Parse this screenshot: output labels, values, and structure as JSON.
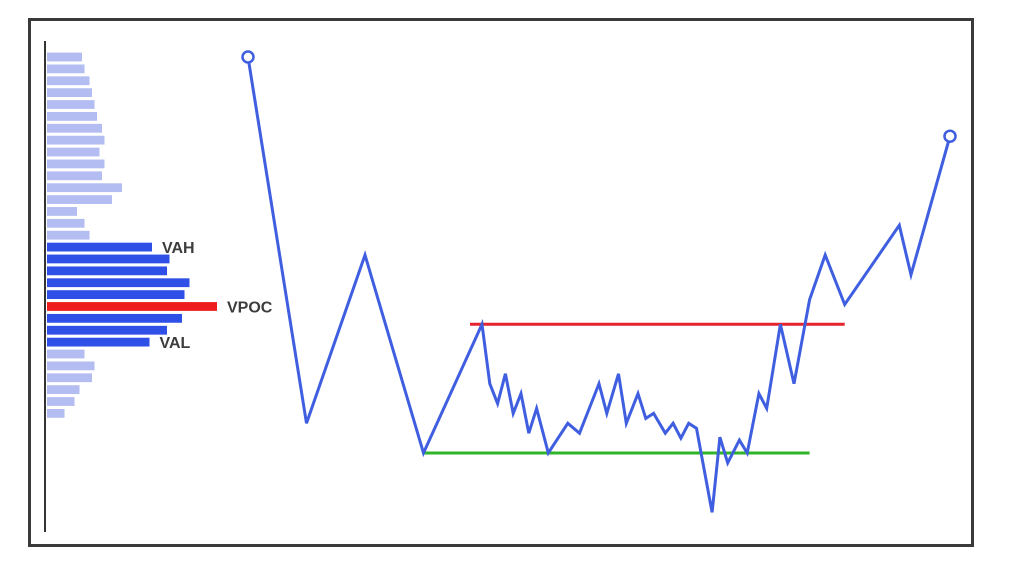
{
  "chart_data": {
    "type": "line",
    "title": "",
    "xlabel": "",
    "ylabel": "",
    "grid": false,
    "legend": "none",
    "colors": {
      "price_line": "#3f5fe0",
      "value_area_bar": "#2f50e6",
      "outside_bar": "#b3bdf1",
      "poc_bar": "#ee1c1c",
      "resistance_line": "#e5242d",
      "support_line": "#2fb52a",
      "axis": "#333333"
    },
    "price_series": [
      [
        0,
        80
      ],
      [
        3,
        43
      ],
      [
        6,
        60
      ],
      [
        9,
        40
      ],
      [
        12,
        53
      ],
      [
        12.4,
        47
      ],
      [
        12.8,
        45
      ],
      [
        13.2,
        48
      ],
      [
        13.6,
        44
      ],
      [
        14.0,
        46
      ],
      [
        14.4,
        42
      ],
      [
        14.8,
        44.5
      ],
      [
        15.4,
        40
      ],
      [
        16.4,
        43
      ],
      [
        17.0,
        42
      ],
      [
        17.6,
        45
      ],
      [
        18.0,
        47
      ],
      [
        18.4,
        44
      ],
      [
        19.0,
        48
      ],
      [
        19.4,
        43
      ],
      [
        20.0,
        46
      ],
      [
        20.4,
        43.5
      ],
      [
        20.8,
        44
      ],
      [
        21.4,
        42
      ],
      [
        21.8,
        43
      ],
      [
        22.2,
        41.5
      ],
      [
        22.6,
        43
      ],
      [
        23.0,
        42.5
      ],
      [
        23.8,
        34
      ],
      [
        24.2,
        41.6
      ],
      [
        24.6,
        39
      ],
      [
        25.2,
        41.3
      ],
      [
        25.6,
        40
      ],
      [
        26.2,
        46
      ],
      [
        26.6,
        44.5
      ],
      [
        27.3,
        53
      ],
      [
        28.0,
        47
      ],
      [
        28.8,
        55.5
      ],
      [
        29.6,
        60
      ],
      [
        30.6,
        55
      ],
      [
        33.4,
        63
      ],
      [
        34.0,
        58
      ],
      [
        36.0,
        72
      ]
    ],
    "levels": {
      "resistance": 53,
      "support": 40
    },
    "volume_profile": {
      "levels": [
        {
          "price": 80.0,
          "volume": 14
        },
        {
          "price": 78.8,
          "volume": 15
        },
        {
          "price": 77.6,
          "volume": 17
        },
        {
          "price": 76.4,
          "volume": 18
        },
        {
          "price": 75.2,
          "volume": 19
        },
        {
          "price": 74.0,
          "volume": 20
        },
        {
          "price": 72.8,
          "volume": 22
        },
        {
          "price": 71.6,
          "volume": 23
        },
        {
          "price": 70.4,
          "volume": 21
        },
        {
          "price": 69.2,
          "volume": 23
        },
        {
          "price": 68.0,
          "volume": 22
        },
        {
          "price": 66.8,
          "volume": 30
        },
        {
          "price": 65.6,
          "volume": 26
        },
        {
          "price": 64.4,
          "volume": 12
        },
        {
          "price": 63.2,
          "volume": 15
        },
        {
          "price": 62.0,
          "volume": 17
        },
        {
          "price": 60.8,
          "volume": 42
        },
        {
          "price": 59.6,
          "volume": 49
        },
        {
          "price": 58.4,
          "volume": 48
        },
        {
          "price": 57.2,
          "volume": 57
        },
        {
          "price": 56.0,
          "volume": 55
        },
        {
          "price": 54.8,
          "volume": 68
        },
        {
          "price": 53.6,
          "volume": 54
        },
        {
          "price": 52.4,
          "volume": 48
        },
        {
          "price": 51.2,
          "volume": 41
        },
        {
          "price": 50.0,
          "volume": 15
        },
        {
          "price": 48.8,
          "volume": 19
        },
        {
          "price": 47.6,
          "volume": 18
        },
        {
          "price": 46.4,
          "volume": 13
        },
        {
          "price": 45.2,
          "volume": 11
        },
        {
          "price": 44.0,
          "volume": 7
        }
      ],
      "value_area_high": 60.8,
      "poc": 54.8,
      "value_area_low": 51.2,
      "labels": {
        "vah": "VAH",
        "vpoc": "VPOC",
        "val": "VAL"
      }
    }
  }
}
